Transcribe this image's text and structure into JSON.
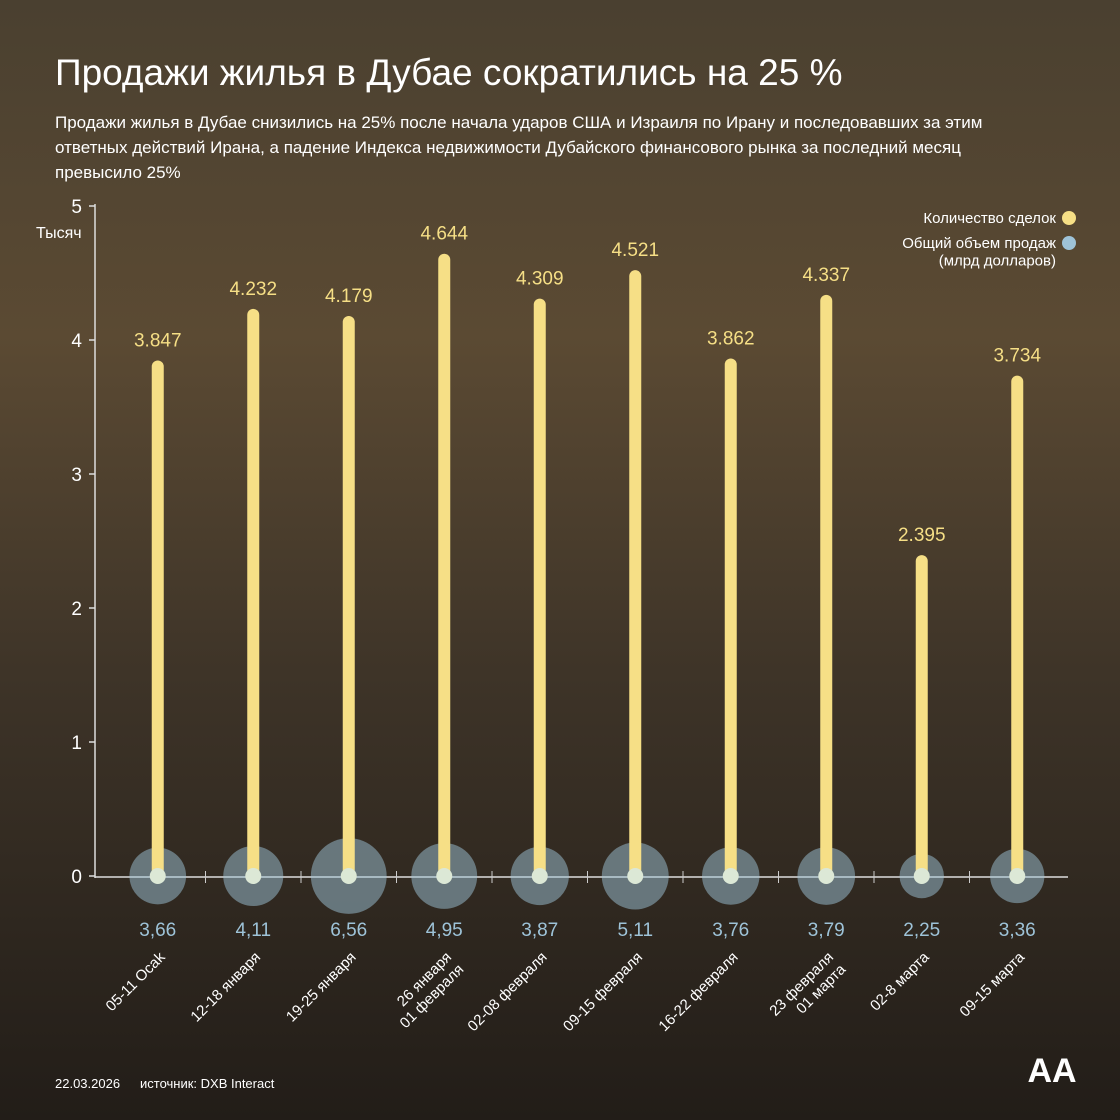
{
  "chart_data": {
    "type": "lollipop-bubble",
    "title": "Продажи жилья в Дубае сократились на 25 %",
    "subtitle": "Продажи жилья в Дубае снизились на 25% после начала ударов США и Израиля по Ирану и последовавших за этим ответных действий Ирана, а падение Индекса недвижимости Дубайского финансового рынка за последний месяц превысило 25%",
    "y_label": "Тысяч",
    "categories": [
      "05-11 Ocak",
      "12-18 января",
      "19-25 января",
      "26 января\n01 февраля",
      "02-08 февраля",
      "09-15 февраля",
      "16-22 февраля",
      "23 февраля\n01 марта",
      "02-8 марта",
      "09-15 марта"
    ],
    "series": [
      {
        "name": "Количество сделок",
        "color": "#f6df86",
        "values": [
          3.847,
          4.232,
          4.179,
          4.644,
          4.309,
          4.521,
          3.862,
          4.337,
          2.395,
          3.734
        ]
      },
      {
        "name": "Общий объем продаж\n(млрд долларов)",
        "color": "#9ec3d8",
        "values": [
          3.66,
          4.11,
          6.56,
          4.95,
          3.87,
          5.11,
          3.76,
          3.79,
          2.25,
          3.36
        ],
        "value_labels": [
          "3,66",
          "4,11",
          "6,56",
          "4,95",
          "3,87",
          "5,11",
          "3,76",
          "3,79",
          "2,25",
          "3,36"
        ]
      }
    ],
    "ylim": [
      0,
      5
    ],
    "yticks": [
      0,
      1,
      2,
      3,
      4,
      5
    ],
    "date": "22.03.2026",
    "source": "источник: DXB Interact",
    "logo": "AA"
  }
}
